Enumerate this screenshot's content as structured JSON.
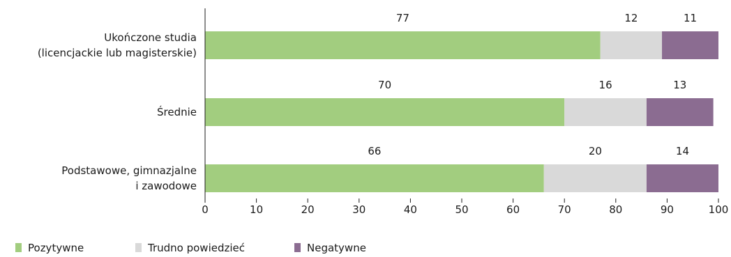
{
  "chart_data": {
    "type": "bar",
    "orientation": "horizontal",
    "stacked": true,
    "categories": [
      [
        "Ukończone studia",
        "(licencjackie lub magisterskie)"
      ],
      [
        "Średnie"
      ],
      [
        "Podstawowe, gimnazjalne",
        "i zawodowe"
      ]
    ],
    "series": [
      {
        "name": "Pozytywne",
        "color": "#a2cd7f",
        "values": [
          77,
          70,
          66
        ]
      },
      {
        "name": "Trudno powiedzieć",
        "color": "#d9d9d9",
        "values": [
          12,
          16,
          20
        ]
      },
      {
        "name": "Negatywne",
        "color": "#8b6c91",
        "values": [
          11,
          13,
          14
        ]
      }
    ],
    "xlim": [
      0,
      100
    ],
    "xticks": [
      0,
      10,
      20,
      30,
      40,
      50,
      60,
      70,
      80,
      90,
      100
    ],
    "title": "",
    "xlabel": "",
    "ylabel": "",
    "grid": false,
    "legend": "bottom-left"
  }
}
